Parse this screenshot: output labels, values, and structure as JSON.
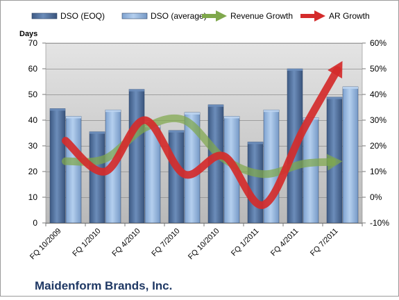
{
  "chart_data": {
    "type": "bar",
    "title": "",
    "footer": "Maidenform Brands, Inc.",
    "ylabel": "Days",
    "y2label": "",
    "categories": [
      "FQ 10/2009",
      "FQ 1/2010",
      "FQ 4/2010",
      "FQ 7/2010",
      "FQ 10/2010",
      "FQ 1/2011",
      "FQ 4/2011",
      "FQ 7/2011"
    ],
    "ylim": [
      0,
      70
    ],
    "y_ticks": [
      0,
      10,
      20,
      30,
      40,
      50,
      60,
      70
    ],
    "y2lim": [
      -10,
      60
    ],
    "y2_ticks": [
      -10,
      0,
      10,
      20,
      30,
      40,
      50,
      60
    ],
    "y2_tick_suffix": "%",
    "grid": true,
    "legend_position": "top",
    "series": [
      {
        "name": "DSO (EOQ)",
        "kind": "bar",
        "axis": "left",
        "color": "#4F6F9B",
        "values": [
          44.5,
          35.5,
          52,
          36,
          46,
          31.5,
          60,
          49
        ]
      },
      {
        "name": "DSO (average)",
        "kind": "bar",
        "axis": "left",
        "color": "#8FB3E0",
        "values": [
          41.5,
          44,
          38,
          43,
          41.5,
          44,
          41,
          53
        ]
      },
      {
        "name": "Revenue Growth",
        "kind": "line",
        "axis": "right",
        "color": "#7FA84C",
        "values": [
          14,
          15,
          27,
          30,
          15,
          9,
          13,
          14
        ],
        "style": "arrow"
      },
      {
        "name": "AR Growth",
        "kind": "line",
        "axis": "right",
        "color": "#D42B2B",
        "values": [
          22,
          10,
          30,
          9,
          16,
          -3,
          26,
          53
        ],
        "style": "arrow"
      }
    ]
  }
}
